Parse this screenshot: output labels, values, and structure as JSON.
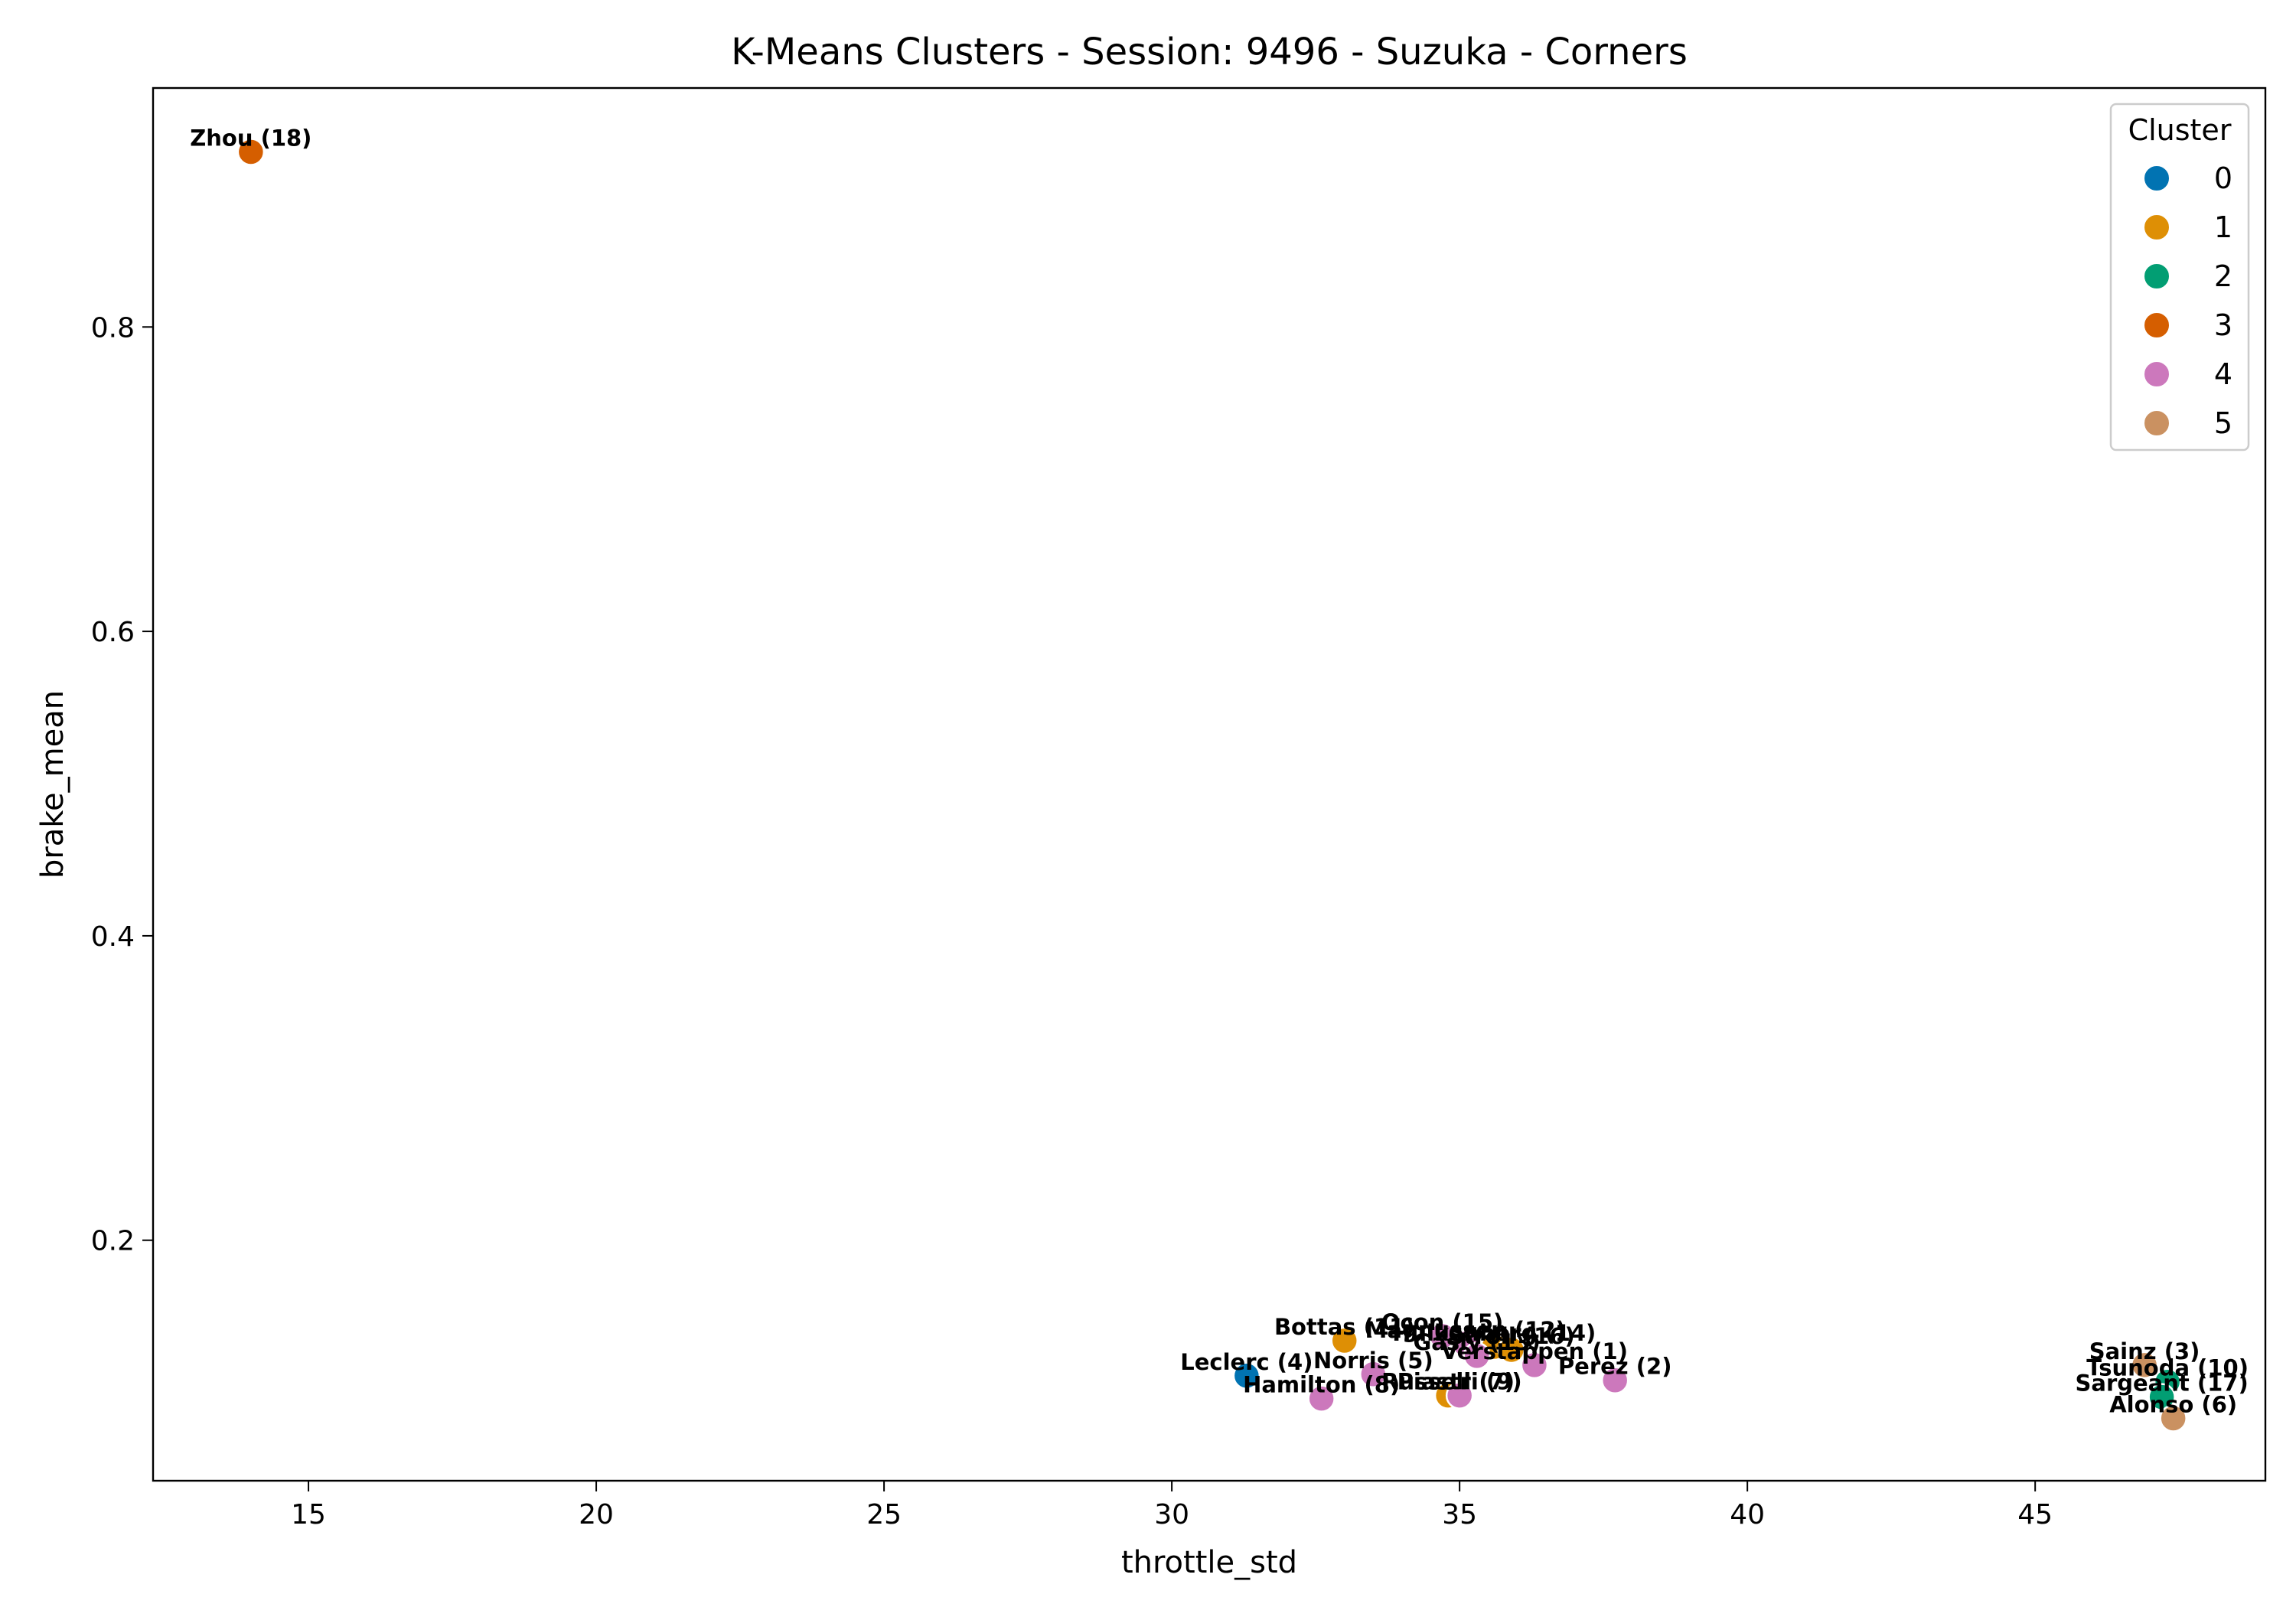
{
  "chart_data": {
    "type": "scatter",
    "title": "K-Means Clusters - Session: 9496 - Suzuka - Corners",
    "xlabel": "throttle_std",
    "ylabel": "brake_mean",
    "xlim": [
      12.3,
      49.0
    ],
    "ylim": [
      0.042,
      0.957
    ],
    "xticks": [
      15,
      20,
      25,
      30,
      35,
      40,
      45
    ],
    "yticks": [
      0.2,
      0.4,
      0.6,
      0.8
    ],
    "xtick_labels": [
      "15",
      "20",
      "25",
      "30",
      "35",
      "40",
      "45"
    ],
    "ytick_labels": [
      "0.2",
      "0.4",
      "0.6",
      "0.8"
    ],
    "grid": false,
    "legend": {
      "title": "Cluster",
      "position": "top-right",
      "entries": [
        {
          "label": "0",
          "color": "#0173b2"
        },
        {
          "label": "1",
          "color": "#de8f05"
        },
        {
          "label": "2",
          "color": "#029e73"
        },
        {
          "label": "3",
          "color": "#d55e00"
        },
        {
          "label": "4",
          "color": "#cc78bc"
        },
        {
          "label": "5",
          "color": "#ca9161"
        }
      ]
    },
    "points": [
      {
        "label": "Zhou (18)",
        "x": 14.0,
        "y": 0.915,
        "cluster": 3
      },
      {
        "label": "Bottas (11)",
        "x": 33.0,
        "y": 0.134,
        "cluster": 1
      },
      {
        "label": "Ocon (15)",
        "x": 34.7,
        "y": 0.137,
        "cluster": 4
      },
      {
        "label": "Magnussen (12)",
        "x": 35.1,
        "y": 0.132,
        "cluster": 4
      },
      {
        "label": "Hulkenberg (14)",
        "x": 35.6,
        "y": 0.13,
        "cluster": 1
      },
      {
        "label": "Stroll (16)",
        "x": 35.9,
        "y": 0.128,
        "cluster": 1
      },
      {
        "label": "Gasly (13)",
        "x": 35.3,
        "y": 0.124,
        "cluster": 4
      },
      {
        "label": "Verstappen (1)",
        "x": 36.3,
        "y": 0.118,
        "cluster": 4
      },
      {
        "label": "Perez (2)",
        "x": 37.7,
        "y": 0.108,
        "cluster": 4
      },
      {
        "label": "Leclerc (4)",
        "x": 31.3,
        "y": 0.111,
        "cluster": 0
      },
      {
        "label": "Norris (5)",
        "x": 33.5,
        "y": 0.112,
        "cluster": 4
      },
      {
        "label": "Hamilton (8)",
        "x": 32.6,
        "y": 0.096,
        "cluster": 4
      },
      {
        "label": "Russell (7)",
        "x": 34.8,
        "y": 0.098,
        "cluster": 1
      },
      {
        "label": "Piastri (9)",
        "x": 35.0,
        "y": 0.098,
        "cluster": 4
      },
      {
        "label": "Sainz (3)",
        "x": 46.9,
        "y": 0.118,
        "cluster": 5
      },
      {
        "label": "Tsunoda (10)",
        "x": 47.3,
        "y": 0.107,
        "cluster": 2
      },
      {
        "label": "Sargeant (17)",
        "x": 47.2,
        "y": 0.097,
        "cluster": 2
      },
      {
        "label": "Alonso (6)",
        "x": 47.4,
        "y": 0.083,
        "cluster": 5
      }
    ]
  }
}
